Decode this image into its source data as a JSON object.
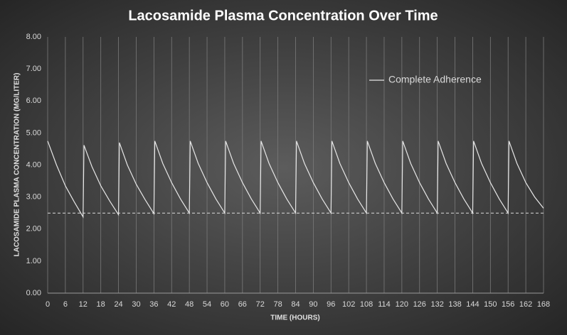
{
  "chart_data": {
    "type": "line",
    "title": "Lacosamide  Plasma  Concentration  Over  Time",
    "x_label": "TIME (HOURS)",
    "y_label": "LACOSAMIDE PLASMA CONCENTRATION (MG/LITER)",
    "x": [
      0,
      3,
      6,
      9,
      12,
      12.3,
      15,
      18,
      21,
      24,
      24.3,
      27,
      30,
      33,
      36,
      36.3,
      39,
      42,
      45,
      48,
      48.3,
      51,
      54,
      57,
      60,
      60.3,
      63,
      66,
      69,
      72,
      72.3,
      75,
      78,
      81,
      84,
      84.3,
      87,
      90,
      93,
      96,
      96.3,
      99,
      102,
      105,
      108,
      108.3,
      111,
      114,
      117,
      120,
      120.3,
      123,
      126,
      129,
      132,
      132.3,
      135,
      138,
      141,
      144,
      144.3,
      147,
      150,
      153,
      156,
      156.3,
      159,
      162,
      165,
      168
    ],
    "series": [
      {
        "name": "Complete Adherence",
        "color": "#e6e6e6",
        "values": [
          4.75,
          4.0,
          3.35,
          2.85,
          2.38,
          4.62,
          3.95,
          3.35,
          2.88,
          2.45,
          4.7,
          4.0,
          3.4,
          2.92,
          2.48,
          4.75,
          4.05,
          3.45,
          2.94,
          2.5,
          4.75,
          4.05,
          3.45,
          2.94,
          2.5,
          4.75,
          4.05,
          3.45,
          2.94,
          2.5,
          4.75,
          4.05,
          3.45,
          2.94,
          2.5,
          4.75,
          4.05,
          3.45,
          2.94,
          2.5,
          4.75,
          4.05,
          3.45,
          2.94,
          2.5,
          4.75,
          4.05,
          3.45,
          2.94,
          2.5,
          4.75,
          4.05,
          3.45,
          2.94,
          2.5,
          4.75,
          4.05,
          3.45,
          2.94,
          2.5,
          4.75,
          4.05,
          3.45,
          2.94,
          2.5,
          4.75,
          4.05,
          3.45,
          3.0,
          2.65
        ]
      }
    ],
    "reference_line": 2.5,
    "xlim": [
      0,
      168
    ],
    "xticks": [
      0,
      6,
      12,
      18,
      24,
      30,
      36,
      42,
      48,
      54,
      60,
      66,
      72,
      78,
      84,
      90,
      96,
      102,
      108,
      114,
      120,
      126,
      132,
      138,
      144,
      150,
      156,
      162,
      168
    ],
    "ylim": [
      0,
      8
    ],
    "yticks": [
      {
        "value": 0,
        "label": "0.00"
      },
      {
        "value": 1,
        "label": "1.00"
      },
      {
        "value": 2,
        "label": "2.00"
      },
      {
        "value": 3,
        "label": "3.00"
      },
      {
        "value": 4,
        "label": "4.00"
      },
      {
        "value": 5,
        "label": "5.00"
      },
      {
        "value": 6,
        "label": "6.00"
      },
      {
        "value": 7,
        "label": "7.00"
      },
      {
        "value": 8,
        "label": "8.00"
      }
    ],
    "grid": "x",
    "legend": "upper right"
  }
}
